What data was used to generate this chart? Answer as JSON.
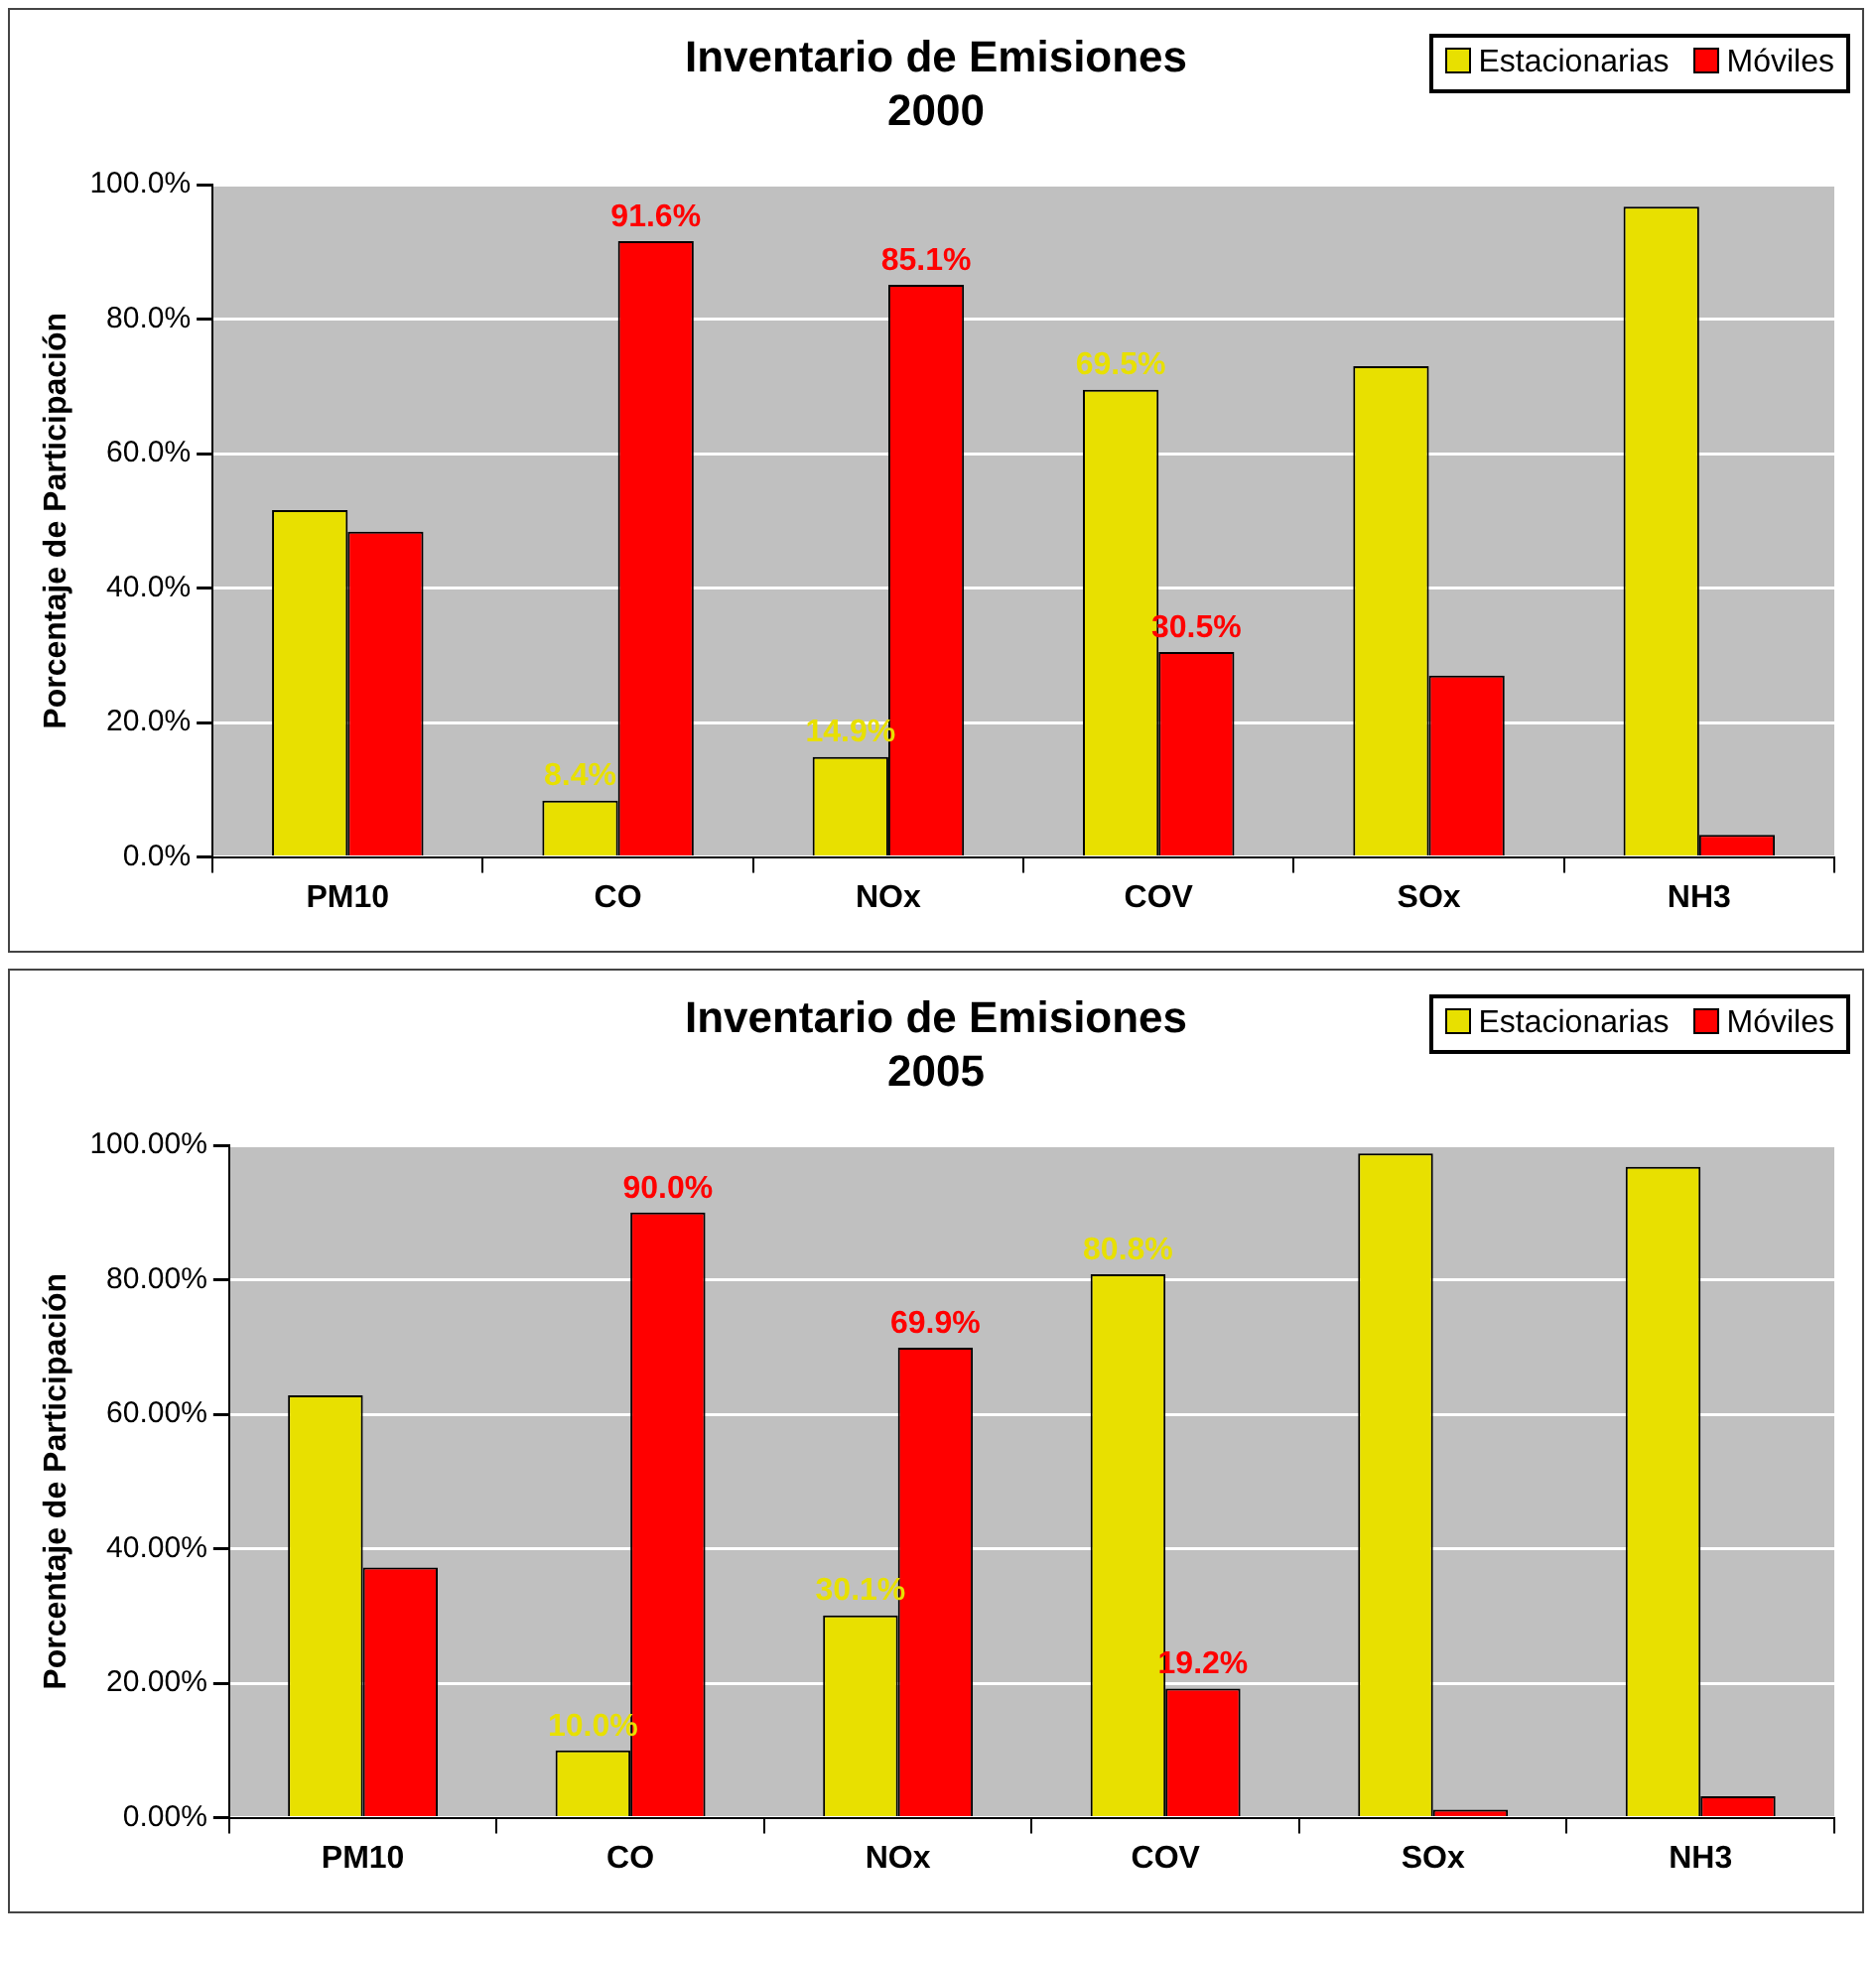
{
  "chart_data": [
    {
      "type": "bar",
      "title": "Inventario de Emisiones",
      "subtitle": "2000",
      "ylabel": "Porcentaje de Participación",
      "categories": [
        "PM10",
        "CO",
        "NOx",
        "COV",
        "SOx",
        "NH3"
      ],
      "series": [
        {
          "name": "Estacionarias",
          "color": "#e8e000",
          "values": [
            51.6,
            8.4,
            14.9,
            69.5,
            73.0,
            96.7
          ],
          "value_labels": [
            null,
            "8.4%",
            "14.9%",
            "69.5%",
            null,
            null
          ]
        },
        {
          "name": "Móviles",
          "color": "#ff0000",
          "values": [
            48.4,
            91.6,
            85.1,
            30.5,
            27.0,
            3.3
          ],
          "value_labels": [
            null,
            "91.6%",
            "85.1%",
            "30.5%",
            null,
            null
          ]
        }
      ],
      "ylim": [
        0,
        100
      ],
      "yticks": [
        {
          "value": 0,
          "label": "0.0%"
        },
        {
          "value": 20,
          "label": "20.0%"
        },
        {
          "value": 40,
          "label": "40.0%"
        },
        {
          "value": 60,
          "label": "60.0%"
        },
        {
          "value": 80,
          "label": "80.0%"
        },
        {
          "value": 100,
          "label": "100.0%"
        }
      ],
      "grid": "y",
      "legend": "top right"
    },
    {
      "type": "bar",
      "title": "Inventario de Emisiones",
      "subtitle": "2005",
      "ylabel": "Porcentaje de Participación",
      "categories": [
        "PM10",
        "CO",
        "NOx",
        "COV",
        "SOx",
        "NH3"
      ],
      "series": [
        {
          "name": "Estacionarias",
          "color": "#e8e000",
          "values": [
            62.8,
            10.0,
            30.1,
            80.8,
            98.8,
            96.8
          ],
          "value_labels": [
            null,
            "10.0%",
            "30.1%",
            "80.8%",
            null,
            null
          ]
        },
        {
          "name": "Móviles",
          "color": "#ff0000",
          "values": [
            37.2,
            90.0,
            69.9,
            19.2,
            1.2,
            3.2
          ],
          "value_labels": [
            null,
            "90.0%",
            "69.9%",
            "19.2%",
            null,
            null
          ]
        }
      ],
      "ylim": [
        0,
        100
      ],
      "yticks": [
        {
          "value": 0,
          "label": "0.00%"
        },
        {
          "value": 20,
          "label": "20.00%"
        },
        {
          "value": 40,
          "label": "40.00%"
        },
        {
          "value": 60,
          "label": "60.00%"
        },
        {
          "value": 80,
          "label": "80.00%"
        },
        {
          "value": 100,
          "label": "100.00%"
        }
      ],
      "grid": "y",
      "legend": "top right"
    }
  ]
}
